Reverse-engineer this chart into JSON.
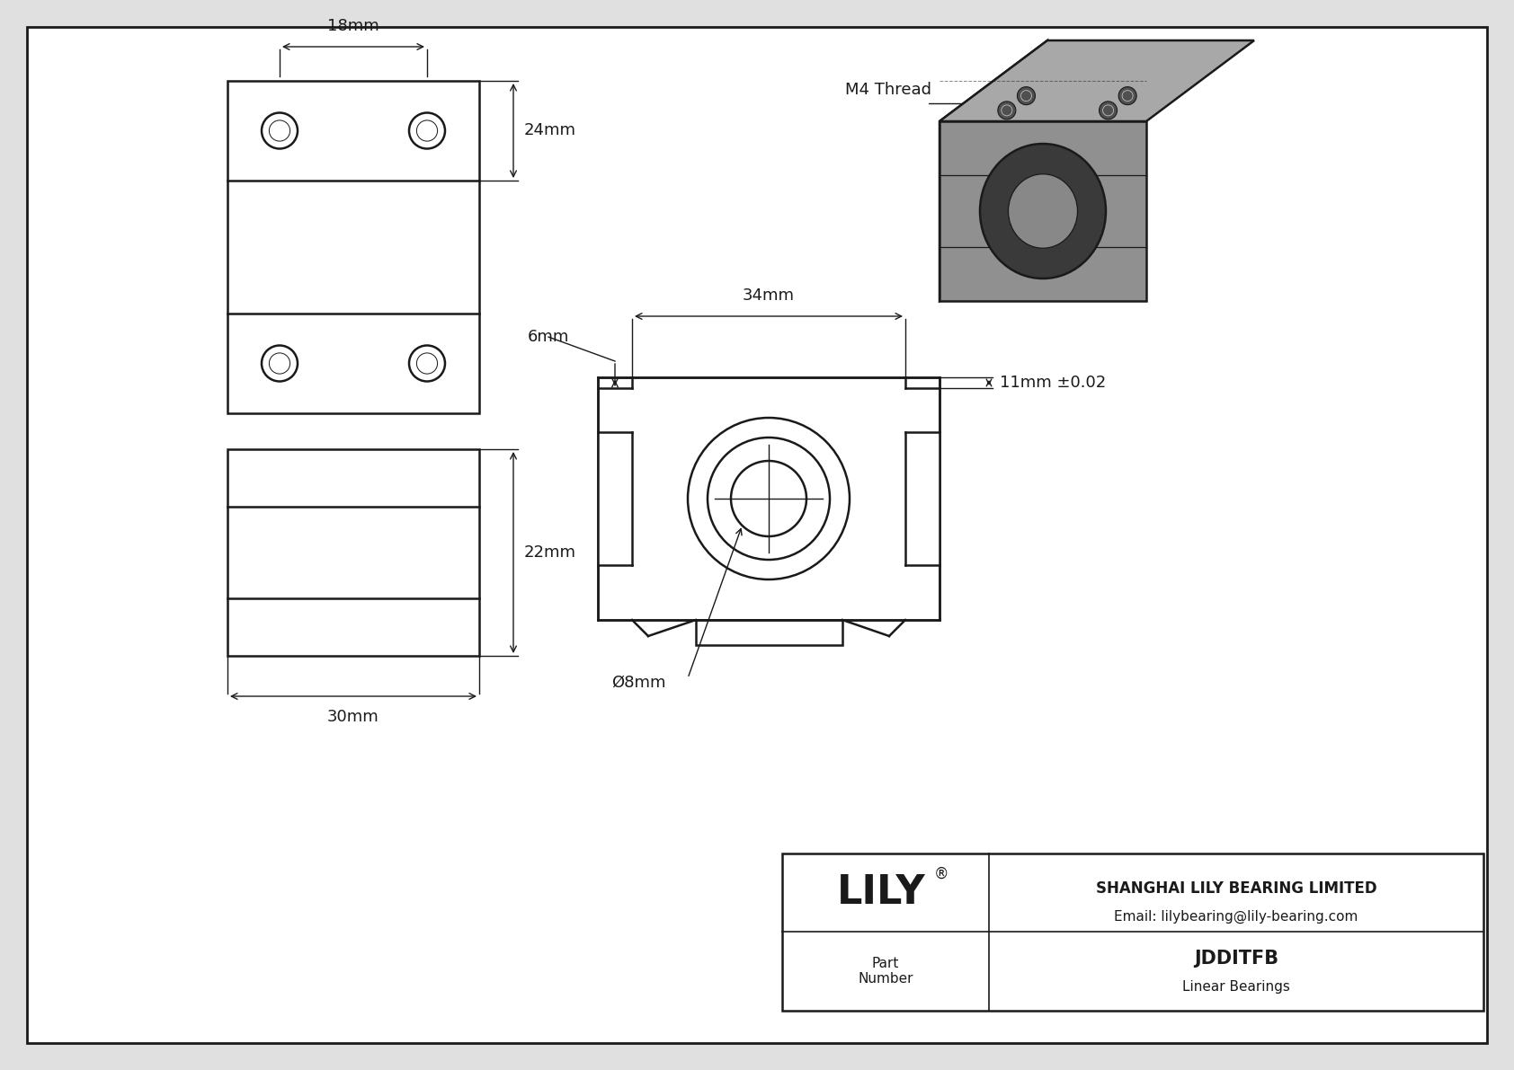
{
  "bg_color": "#e0e0e0",
  "drawing_bg": "#ffffff",
  "line_color": "#1a1a1a",
  "part_number": "JDDITFB",
  "part_type": "Linear Bearings",
  "company": "SHANGHAI LILY BEARING LIMITED",
  "email": "Email: lilybearing@lily-bearing.com",
  "dim_18mm": "18mm",
  "dim_24mm": "24mm",
  "dim_22mm": "22mm",
  "dim_30mm": "30mm",
  "dim_6mm": "6mm",
  "dim_34mm": "34mm",
  "dim_11mm": "11mm ±0.02",
  "dim_8mm": "Ø8mm",
  "m4_thread": "M4 Thread",
  "iso_top_color": "#a8a8a8",
  "iso_left_color": "#787878",
  "iso_right_color": "#909090",
  "iso_bore_dark": "#3a3a3a",
  "iso_bore_mid": "#888888"
}
